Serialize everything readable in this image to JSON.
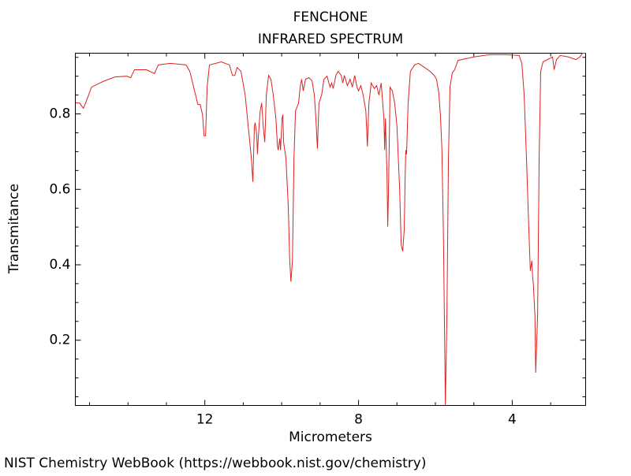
{
  "chart_data": {
    "type": "line",
    "title": "FENCHONE",
    "subtitle": "INFRARED SPECTRUM",
    "xlabel": "Micrometers",
    "ylabel": "Transmitance",
    "footer": "NIST Chemistry WebBook (https://webbook.nist.gov/chemistry)",
    "xlim": [
      15.37,
      2.09
    ],
    "ylim": [
      0.027,
      0.961
    ],
    "xticks": [
      12,
      8,
      4
    ],
    "xticks_minor": [
      15,
      14,
      13,
      11,
      10,
      9,
      7,
      6,
      5,
      3
    ],
    "yticks": [
      0.2,
      0.4,
      0.6,
      0.8
    ],
    "yticks_minor": [
      0.05,
      0.1,
      0.15,
      0.25,
      0.3,
      0.35,
      0.45,
      0.5,
      0.55,
      0.65,
      0.7,
      0.75,
      0.85,
      0.9,
      0.95
    ],
    "grid": false,
    "x": [
      15.36,
      15.26,
      15.16,
      15.06,
      14.95,
      14.65,
      14.34,
      14.03,
      13.93,
      13.83,
      13.52,
      13.31,
      13.21,
      12.9,
      12.49,
      12.39,
      12.29,
      12.18,
      12.12,
      12.06,
      12.02,
      11.98,
      11.94,
      11.88,
      11.57,
      11.36,
      11.28,
      11.22,
      11.16,
      11.06,
      10.95,
      10.85,
      10.79,
      10.75,
      10.71,
      10.69,
      10.65,
      10.63,
      10.61,
      10.56,
      10.52,
      10.48,
      10.44,
      10.4,
      10.34,
      10.28,
      10.22,
      10.15,
      10.11,
      10.09,
      10.05,
      10.03,
      9.99,
      9.97,
      9.95,
      9.89,
      9.83,
      9.79,
      9.76,
      9.72,
      9.68,
      9.64,
      9.56,
      9.52,
      9.48,
      9.44,
      9.38,
      9.29,
      9.21,
      9.15,
      9.11,
      9.07,
      9.03,
      8.96,
      8.9,
      8.82,
      8.74,
      8.7,
      8.66,
      8.59,
      8.53,
      8.45,
      8.41,
      8.37,
      8.29,
      8.22,
      8.16,
      8.1,
      8.04,
      8.0,
      7.94,
      7.88,
      7.81,
      7.77,
      7.73,
      7.67,
      7.59,
      7.53,
      7.47,
      7.41,
      7.34,
      7.32,
      7.3,
      7.26,
      7.24,
      7.22,
      7.2,
      7.18,
      7.12,
      7.06,
      7.0,
      6.93,
      6.89,
      6.85,
      6.81,
      6.79,
      6.77,
      6.75,
      6.71,
      6.65,
      6.54,
      6.44,
      6.28,
      6.14,
      6.03,
      5.97,
      5.91,
      5.87,
      5.83,
      5.79,
      5.74,
      5.7,
      5.66,
      5.62,
      5.56,
      5.5,
      5.41,
      5.0,
      4.59,
      4.18,
      3.82,
      3.75,
      3.69,
      3.63,
      3.59,
      3.53,
      3.49,
      3.47,
      3.45,
      3.41,
      3.39,
      3.34,
      3.3,
      3.26,
      3.2,
      2.95,
      2.91,
      2.85,
      2.75,
      2.54,
      2.34,
      2.24,
      2.17,
      2.09
    ],
    "series": [
      {
        "color": "#dd2222",
        "values": [
          0.829,
          0.829,
          0.815,
          0.84,
          0.871,
          0.886,
          0.898,
          0.9,
          0.896,
          0.917,
          0.917,
          0.907,
          0.93,
          0.934,
          0.93,
          0.913,
          0.871,
          0.825,
          0.825,
          0.798,
          0.742,
          0.742,
          0.871,
          0.93,
          0.938,
          0.93,
          0.902,
          0.902,
          0.923,
          0.913,
          0.85,
          0.746,
          0.683,
          0.62,
          0.767,
          0.777,
          0.746,
          0.693,
          0.735,
          0.808,
          0.829,
          0.767,
          0.725,
          0.85,
          0.902,
          0.892,
          0.85,
          0.788,
          0.714,
          0.704,
          0.735,
          0.704,
          0.788,
          0.798,
          0.725,
          0.683,
          0.558,
          0.411,
          0.355,
          0.411,
          0.683,
          0.808,
          0.829,
          0.871,
          0.892,
          0.861,
          0.892,
          0.896,
          0.888,
          0.85,
          0.788,
          0.708,
          0.829,
          0.85,
          0.892,
          0.9,
          0.871,
          0.882,
          0.867,
          0.902,
          0.913,
          0.902,
          0.882,
          0.902,
          0.875,
          0.892,
          0.871,
          0.902,
          0.871,
          0.861,
          0.875,
          0.85,
          0.808,
          0.714,
          0.829,
          0.882,
          0.867,
          0.875,
          0.85,
          0.882,
          0.788,
          0.704,
          0.788,
          0.641,
          0.501,
          0.599,
          0.725,
          0.871,
          0.861,
          0.829,
          0.767,
          0.599,
          0.453,
          0.436,
          0.495,
          0.62,
          0.704,
          0.693,
          0.829,
          0.913,
          0.93,
          0.934,
          0.923,
          0.913,
          0.902,
          0.892,
          0.854,
          0.798,
          0.704,
          0.474,
          0.027,
          0.265,
          0.683,
          0.871,
          0.909,
          0.917,
          0.942,
          0.951,
          0.957,
          0.957,
          0.955,
          0.934,
          0.85,
          0.683,
          0.558,
          0.384,
          0.411,
          0.369,
          0.348,
          0.265,
          0.114,
          0.265,
          0.683,
          0.913,
          0.938,
          0.951,
          0.917,
          0.944,
          0.955,
          0.951,
          0.944,
          0.951,
          0.961,
          0.961
        ]
      }
    ]
  }
}
